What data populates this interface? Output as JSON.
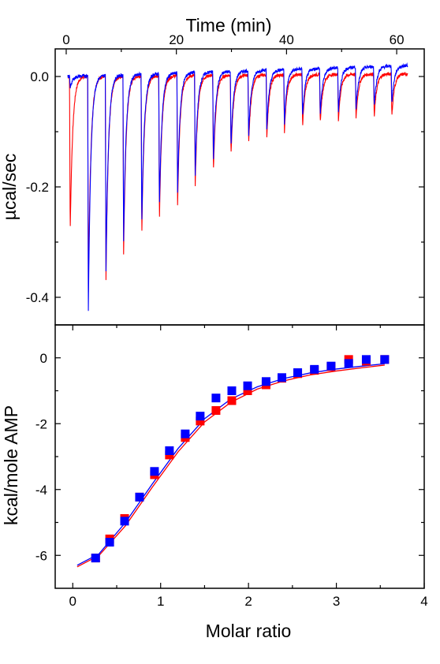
{
  "chart_data": [
    {
      "panel": "top",
      "type": "line",
      "title": "",
      "xlabel": "Time (min)",
      "ylabel": "µcal/sec",
      "xlim": [
        -2,
        65
      ],
      "ylim": [
        -0.45,
        0.05
      ],
      "xticks": [
        0,
        20,
        40,
        60
      ],
      "yticks": [
        0.0,
        -0.2,
        -0.4
      ],
      "ytick_labels": [
        "0.0",
        "-0.2",
        "-0.4"
      ],
      "injection_times": [
        0.6,
        3.9,
        7.1,
        10.3,
        13.6,
        16.8,
        20.1,
        23.3,
        26.6,
        29.8,
        33.0,
        36.3,
        39.5,
        42.8,
        46.0,
        49.3,
        52.5,
        55.8,
        59.0
      ],
      "series": [
        {
          "color": "#ff0000",
          "baseline_start": 0.0,
          "baseline_end": 0.005,
          "peaks": [
            -0.285,
            -0.39,
            -0.37,
            -0.325,
            -0.29,
            -0.265,
            -0.235,
            -0.2,
            -0.175,
            -0.145,
            -0.125,
            -0.11,
            -0.1,
            -0.09,
            -0.085,
            -0.08,
            -0.077,
            -0.075,
            -0.073
          ]
        },
        {
          "color": "#0000ff",
          "baseline_start": 0.0,
          "baseline_end": 0.02,
          "peaks": [
            -0.02,
            -0.425,
            -0.35,
            -0.3,
            -0.27,
            -0.24,
            -0.21,
            -0.18,
            -0.155,
            -0.13,
            -0.11,
            -0.095,
            -0.085,
            -0.075,
            -0.07,
            -0.065,
            -0.06,
            -0.055,
            -0.05
          ]
        }
      ]
    },
    {
      "panel": "bottom",
      "type": "scatter",
      "title": "",
      "xlabel": "Molar ratio",
      "ylabel": "kcal/mole AMP",
      "xlim": [
        -0.2,
        4.0
      ],
      "ylim": [
        -7,
        1
      ],
      "xticks": [
        0,
        1,
        2,
        3,
        4
      ],
      "yticks": [
        0,
        -2,
        -4,
        -6
      ],
      "series": [
        {
          "color": "#ff0000",
          "x": [
            0.26,
            0.42,
            0.59,
            0.76,
            0.93,
            1.1,
            1.28,
            1.45,
            1.63,
            1.81,
            1.99,
            2.2,
            2.38,
            2.56,
            2.75,
            2.94,
            3.14,
            3.34,
            3.55
          ],
          "y": [
            -6.08,
            -5.5,
            -4.88,
            -4.23,
            -3.55,
            -2.95,
            -2.42,
            -1.92,
            -1.6,
            -1.3,
            -1.0,
            -0.82,
            -0.62,
            -0.48,
            -0.38,
            -0.27,
            -0.05,
            -0.1,
            -0.05
          ],
          "fit_x": [
            0.05,
            0.3,
            0.6,
            0.9,
            1.2,
            1.5,
            1.8,
            2.1,
            2.4,
            2.7,
            3.0,
            3.3,
            3.55
          ],
          "fit_y": [
            -6.35,
            -6.0,
            -5.1,
            -3.95,
            -2.85,
            -1.95,
            -1.35,
            -0.95,
            -0.7,
            -0.52,
            -0.4,
            -0.3,
            -0.22
          ]
        },
        {
          "color": "#0000ff",
          "x": [
            0.26,
            0.42,
            0.59,
            0.76,
            0.93,
            1.1,
            1.28,
            1.45,
            1.63,
            1.81,
            1.99,
            2.2,
            2.38,
            2.56,
            2.75,
            2.94,
            3.14,
            3.34,
            3.55
          ],
          "y": [
            -6.08,
            -5.6,
            -4.96,
            -4.23,
            -3.45,
            -2.82,
            -2.31,
            -1.77,
            -1.22,
            -1.0,
            -0.85,
            -0.72,
            -0.6,
            -0.45,
            -0.35,
            -0.25,
            -0.17,
            -0.05,
            -0.05
          ],
          "fit_x": [
            0.05,
            0.3,
            0.6,
            0.9,
            1.2,
            1.5,
            1.8,
            2.1,
            2.4,
            2.7,
            3.0,
            3.3,
            3.55
          ],
          "fit_y": [
            -6.3,
            -5.95,
            -5.0,
            -3.85,
            -2.75,
            -1.85,
            -1.25,
            -0.88,
            -0.63,
            -0.46,
            -0.34,
            -0.25,
            -0.18
          ]
        }
      ]
    }
  ]
}
